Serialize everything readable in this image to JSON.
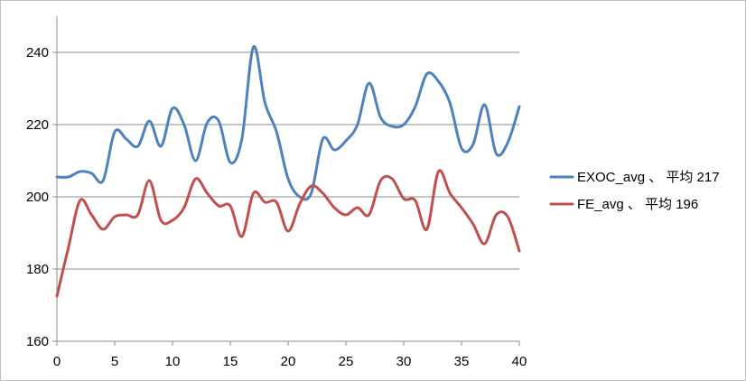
{
  "chart_data": {
    "type": "line",
    "title": "",
    "xlabel": "",
    "ylabel": "",
    "xlim": [
      0,
      40
    ],
    "ylim": [
      160,
      250
    ],
    "x_ticks": [
      0,
      5,
      10,
      15,
      20,
      25,
      30,
      35,
      40
    ],
    "y_ticks": [
      160,
      180,
      200,
      220,
      240
    ],
    "grid": "horizontal",
    "legend_position": "right",
    "x": [
      0,
      1,
      2,
      3,
      4,
      5,
      6,
      7,
      8,
      9,
      10,
      11,
      12,
      13,
      14,
      15,
      16,
      17,
      18,
      19,
      20,
      21,
      22,
      23,
      24,
      25,
      26,
      27,
      28,
      29,
      30,
      31,
      32,
      33,
      34,
      35,
      36,
      37,
      38,
      39,
      40
    ],
    "series": [
      {
        "name": "EXOC_avg 、 平均 217",
        "color": "#4f81bd",
        "values": [
          205.5,
          205.5,
          207,
          206.5,
          204.5,
          218,
          216,
          214,
          221,
          214,
          224.5,
          220,
          210,
          220.5,
          221,
          209.5,
          216,
          241.5,
          226,
          218,
          205,
          200,
          201,
          216,
          213,
          215.5,
          220,
          231.5,
          222,
          219.5,
          220,
          225,
          234,
          232,
          226,
          213.5,
          214.5,
          225.5,
          212,
          215,
          225
        ]
      },
      {
        "name": "FE_avg 、 平均 196",
        "color": "#c0504d",
        "values": [
          172.5,
          186,
          199,
          195,
          191,
          194.5,
          195,
          195,
          204.5,
          193.5,
          193.5,
          197,
          205,
          201,
          197.5,
          197.5,
          189,
          201,
          198.5,
          198.5,
          190.5,
          198,
          203,
          201,
          197,
          195,
          197,
          195,
          204.5,
          205,
          199.5,
          199,
          191,
          207,
          201,
          197,
          192.5,
          187,
          195,
          194.5,
          185
        ]
      }
    ]
  }
}
